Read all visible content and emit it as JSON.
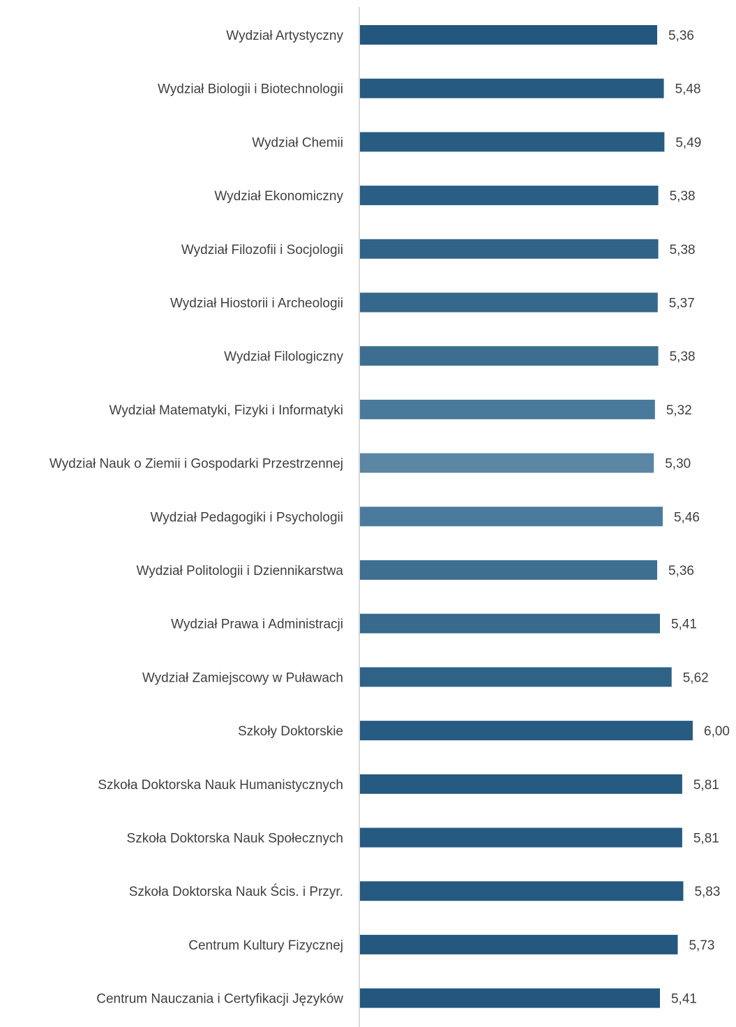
{
  "chart_data": {
    "type": "bar",
    "orientation": "horizontal",
    "title": "",
    "xlabel": "",
    "ylabel": "",
    "grid": false,
    "legend": "none",
    "xlim": [
      0,
      6
    ],
    "categories": [
      "Wydział Artystyczny",
      "Wydział Biologii i Biotechnologii",
      "Wydział Chemii",
      "Wydział Ekonomiczny",
      "Wydział Filozofii i Socjologii",
      "Wydział Hiostorii i Archeologii",
      "Wydział Filologiczny",
      "Wydział Matematyki, Fizyki i Informatyki",
      "Wydział Nauk o Ziemii i Gospodarki Przestrzennej",
      "Wydział Pedagogiki i Psychologii",
      "Wydział Politologii i Dziennikarstwa",
      "Wydział Prawa i Administracji",
      "Wydział Zamiejscowy w Puławach",
      "Szkoły Doktorskie",
      "Szkoła Doktorska Nauk Humanistycznych",
      "Szkoła Doktorska Nauk Społecznych",
      "Szkoła Doktorska Nauk Ścis. i Przyr.",
      "Centrum Kultury Fizycznej",
      "Centrum Nauczania i Certyfikacji Języków"
    ],
    "values": [
      5.36,
      5.48,
      5.49,
      5.38,
      5.38,
      5.37,
      5.38,
      5.32,
      5.3,
      5.46,
      5.36,
      5.41,
      5.62,
      6.0,
      5.81,
      5.81,
      5.83,
      5.73,
      5.41
    ],
    "value_labels": [
      "5,36",
      "5,48",
      "5,49",
      "5,38",
      "5,38",
      "5,37",
      "5,38",
      "5,32",
      "5,30",
      "5,46",
      "5,36",
      "5,41",
      "5,62",
      "6,00",
      "5,81",
      "5,81",
      "5,83",
      "5,73",
      "5,41"
    ],
    "bar_colors": [
      "#23577e",
      "#265a80",
      "#285c82",
      "#2b5e84",
      "#306387",
      "#36688c",
      "#3d6e90",
      "#4a7a9b",
      "#5b86a4",
      "#4b7b9c",
      "#3e6f91",
      "#376a8d",
      "#2f6287",
      "#275b81",
      "#265a80",
      "#265a80",
      "#255980",
      "#24587f",
      "#23577e"
    ],
    "axis_color": "#d9d9d9"
  }
}
